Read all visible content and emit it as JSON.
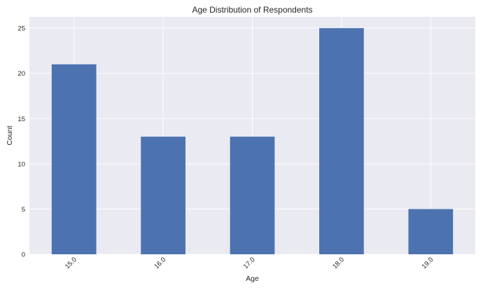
{
  "chart_data": {
    "type": "bar",
    "title": "Age Distribution of Respondents",
    "xlabel": "Age",
    "ylabel": "Count",
    "categories": [
      "15.0",
      "16.0",
      "17.0",
      "18.0",
      "19.0"
    ],
    "values": [
      21,
      13,
      13,
      25,
      5
    ],
    "ylim": [
      0,
      26.25
    ],
    "yticks": [
      "0",
      "5",
      "10",
      "15",
      "20",
      "25"
    ],
    "grid": true,
    "bar_color": "#4C72B0",
    "background_color": "#EAEAF2"
  }
}
